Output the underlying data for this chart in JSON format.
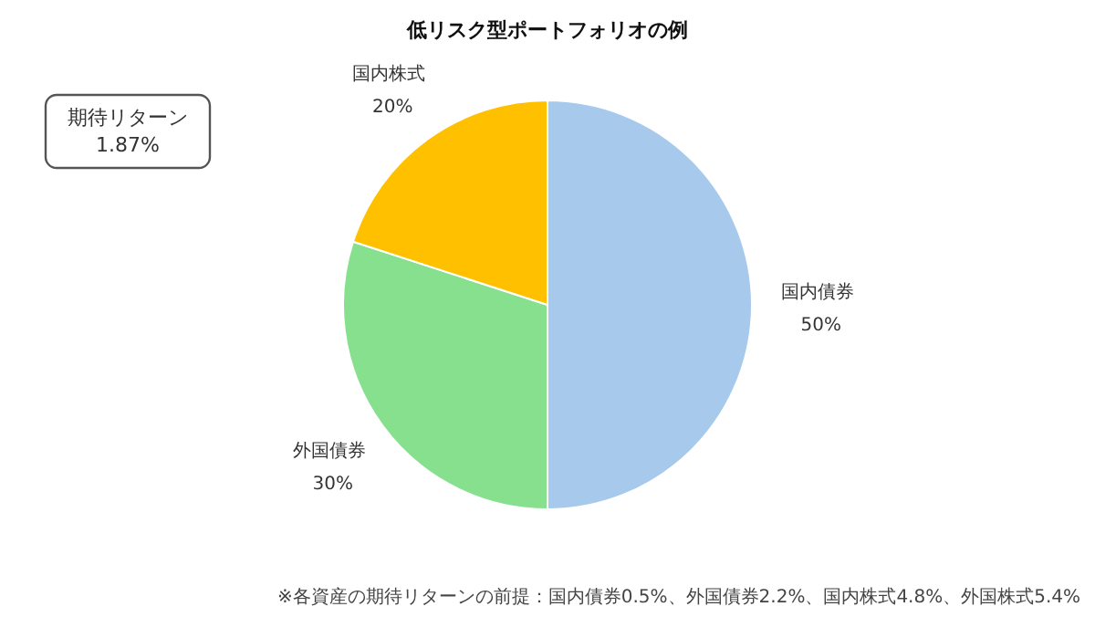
{
  "chart_data": {
    "type": "pie",
    "title": "低リスク型ポートフォリオの例",
    "categories": [
      "国内債券",
      "外国債券",
      "国内株式"
    ],
    "values": [
      50,
      30,
      20
    ],
    "colors": [
      "#a6c9ec",
      "#86e08e",
      "#ffc000"
    ],
    "value_labels": [
      "50%",
      "30%",
      "20%"
    ],
    "annotations": [
      "期待リターン\n1.87%",
      "※各資産の期待リターンの前提：国内債券0.5%、外国債券2.2%、国内株式4.8%、外国株式5.4%"
    ]
  }
}
